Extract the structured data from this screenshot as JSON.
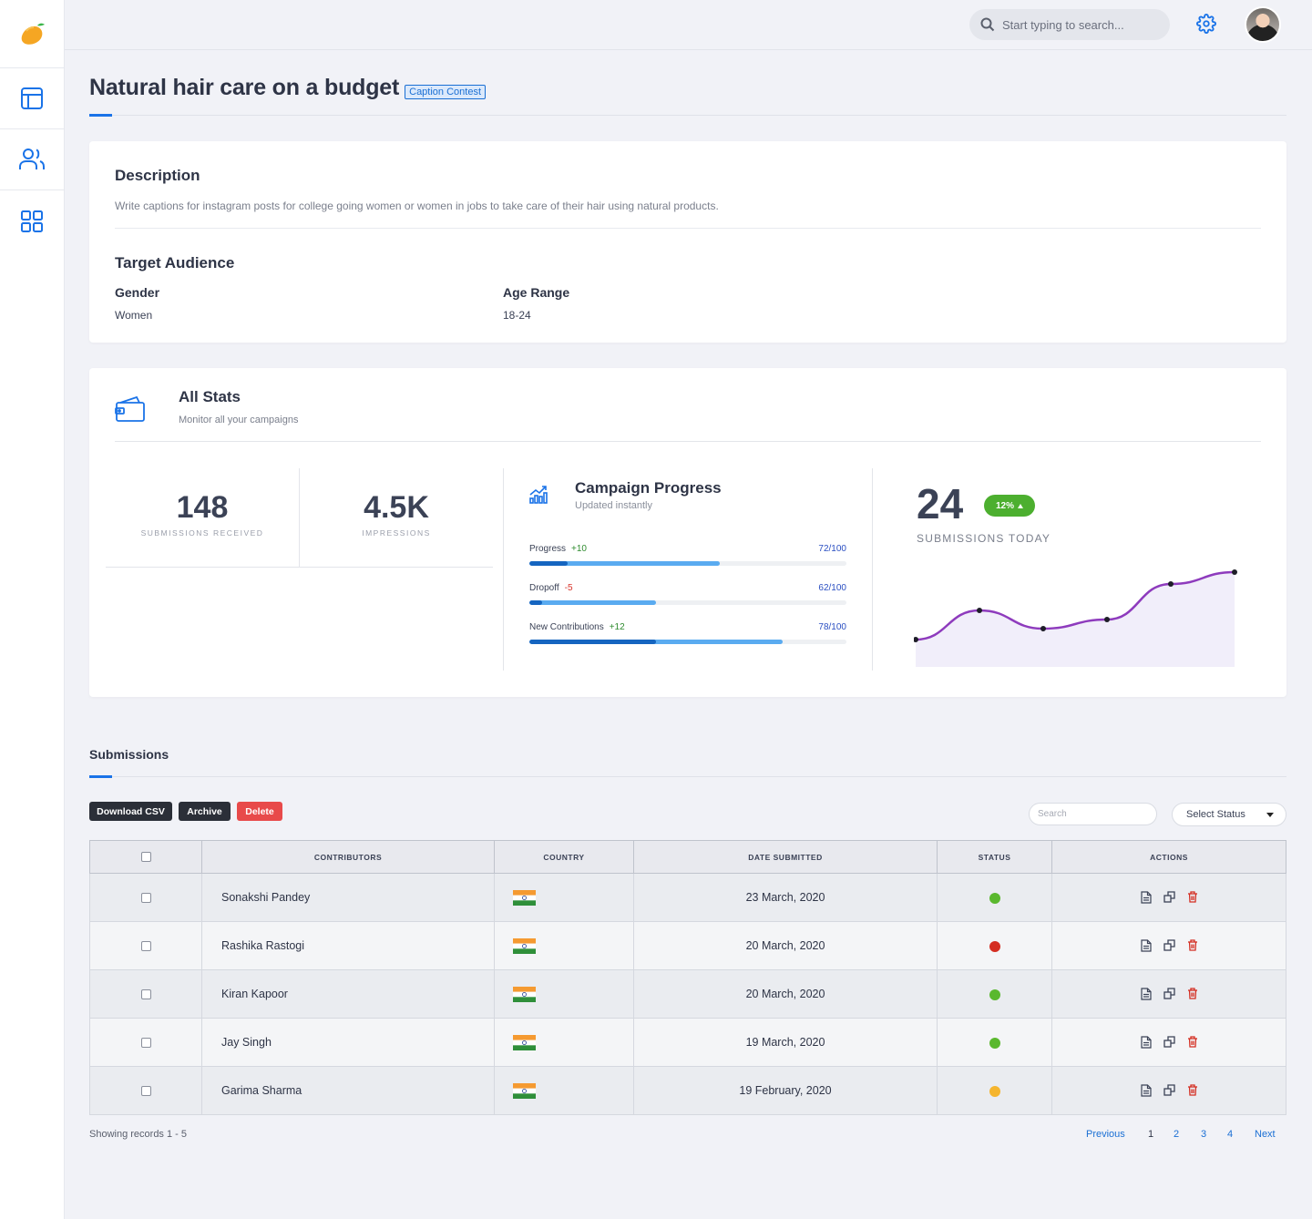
{
  "topbar": {
    "search_placeholder": "Start typing to search..."
  },
  "sidebar": {
    "items": [
      "layout-icon",
      "users-icon",
      "grid-icon"
    ]
  },
  "page": {
    "title": "Natural hair care on a budget",
    "tag": "Caption Contest"
  },
  "description": {
    "title": "Description",
    "text": "Write captions for instagram posts for college going women or women in jobs to take care of their hair using natural products."
  },
  "target_audience": {
    "title": "Target Audience",
    "gender_label": "Gender",
    "gender_value": "Women",
    "age_label": "Age Range",
    "age_value": "18-24"
  },
  "stats": {
    "title": "All Stats",
    "subtitle": "Monitor all your campaigns",
    "submissions_value": "148",
    "submissions_label": "SUBMISSIONS RECEIVED",
    "impressions_value": "4.5K",
    "impressions_label": "IMPRESSIONS"
  },
  "campaign_progress": {
    "title": "Campaign Progress",
    "subtitle": "Updated instantly",
    "bars": [
      {
        "label": "Progress",
        "delta": "+10",
        "total": "72/100",
        "light": 0.6,
        "dark": 0.12
      },
      {
        "label": "Dropoff",
        "delta": "-5",
        "total": "62/100",
        "light": 0.4,
        "dark": 0.04
      },
      {
        "label": "New Contributions",
        "delta": "+12",
        "total": "78/100",
        "light": 0.8,
        "dark": 0.4
      }
    ]
  },
  "today": {
    "value": "24",
    "badge": "12%",
    "label": "SUBMISSIONS TODAY"
  },
  "chart_data": {
    "type": "area",
    "x": [
      1,
      2,
      3,
      4,
      5,
      6
    ],
    "values": [
      30,
      62,
      42,
      52,
      91,
      104
    ],
    "ylim": [
      0,
      110
    ],
    "color": "#8e3bbd"
  },
  "submissions": {
    "title": "Submissions",
    "download_label": "Download CSV",
    "archive_label": "Archive",
    "delete_label": "Delete",
    "search_placeholder": "Search",
    "status_select": "Select Status",
    "columns": [
      "CONTRIBUTORS",
      "COUNTRY",
      "DATE SUBMITTED",
      "STATUS",
      "ACTIONS"
    ],
    "rows": [
      {
        "name": "Sonakshi Pandey",
        "country": "india-flag",
        "date": "23 March, 2020",
        "status_color": "#5ab82e"
      },
      {
        "name": "Rashika Rastogi",
        "country": "india-flag",
        "date": "20 March, 2020",
        "status_color": "#d42e22"
      },
      {
        "name": "Kiran Kapoor",
        "country": "india-flag",
        "date": "20 March, 2020",
        "status_color": "#5ab82e"
      },
      {
        "name": "Jay Singh",
        "country": "india-flag",
        "date": "19 March, 2020",
        "status_color": "#5ab82e"
      },
      {
        "name": "Garima Sharma",
        "country": "india-flag",
        "date": "19 February, 2020",
        "status_color": "#f5b52e"
      }
    ],
    "records_text": "Showing records 1 - 5",
    "pagination": {
      "previous": "Previous",
      "pages": [
        "1",
        "2",
        "3",
        "4"
      ],
      "next": "Next"
    }
  },
  "colors": {
    "accent": "#1a73e8",
    "success": "#4caf2f",
    "danger": "#e84a4a"
  }
}
